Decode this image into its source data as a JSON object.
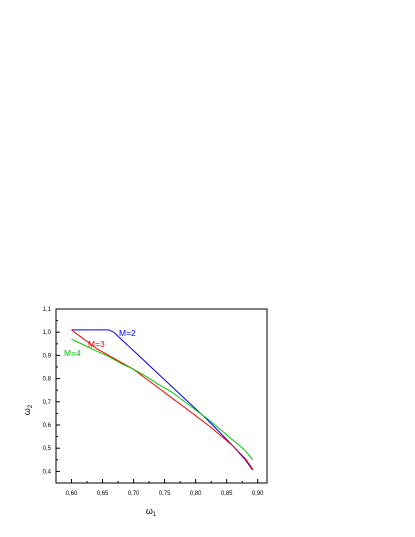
{
  "chart_data": {
    "type": "line",
    "xlabel": "ω",
    "xlabel_sub": "1",
    "ylabel": "ω",
    "ylabel_sub": "2",
    "xlim": [
      0.575,
      0.915
    ],
    "ylim": [
      0.35,
      1.1
    ],
    "xticks": [
      0.6,
      0.65,
      0.7,
      0.75,
      0.8,
      0.85,
      0.9
    ],
    "xtick_labels": [
      "0,60",
      "0,65",
      "0,70",
      "0,75",
      "0,80",
      "0,85",
      "0,90"
    ],
    "yticks": [
      0.4,
      0.5,
      0.6,
      0.7,
      0.8,
      0.9,
      1.0,
      1.1
    ],
    "ytick_labels": [
      "0,4",
      "0,5",
      "0,6",
      "0,7",
      "0,8",
      "0,9",
      "1,0",
      "1,1"
    ],
    "grid": false,
    "series": [
      {
        "name": "M=2",
        "color": "#0000ff",
        "x": [
          0.6,
          0.62,
          0.64,
          0.66,
          0.668,
          0.68,
          0.7,
          0.72,
          0.74,
          0.76,
          0.78,
          0.8,
          0.82,
          0.84,
          0.86,
          0.88,
          0.892
        ],
        "y": [
          1.01,
          1.01,
          1.01,
          1.01,
          1.0,
          0.97,
          0.92,
          0.87,
          0.82,
          0.77,
          0.72,
          0.67,
          0.62,
          0.565,
          0.51,
          0.45,
          0.405
        ]
      },
      {
        "name": "M=3",
        "color": "#ff0000",
        "x": [
          0.6,
          0.62,
          0.64,
          0.66,
          0.68,
          0.7,
          0.72,
          0.74,
          0.76,
          0.78,
          0.8,
          0.82,
          0.84,
          0.86,
          0.88,
          0.892
        ],
        "y": [
          1.01,
          0.97,
          0.93,
          0.9,
          0.87,
          0.84,
          0.8,
          0.76,
          0.72,
          0.68,
          0.64,
          0.6,
          0.555,
          0.51,
          0.455,
          0.41
        ]
      },
      {
        "name": "M=4",
        "color": "#00cc00",
        "x": [
          0.6,
          0.62,
          0.64,
          0.66,
          0.68,
          0.7,
          0.72,
          0.74,
          0.76,
          0.78,
          0.8,
          0.82,
          0.84,
          0.86,
          0.88,
          0.892
        ],
        "y": [
          0.97,
          0.945,
          0.92,
          0.895,
          0.865,
          0.84,
          0.81,
          0.775,
          0.745,
          0.705,
          0.665,
          0.625,
          0.58,
          0.535,
          0.49,
          0.45
        ]
      }
    ]
  }
}
